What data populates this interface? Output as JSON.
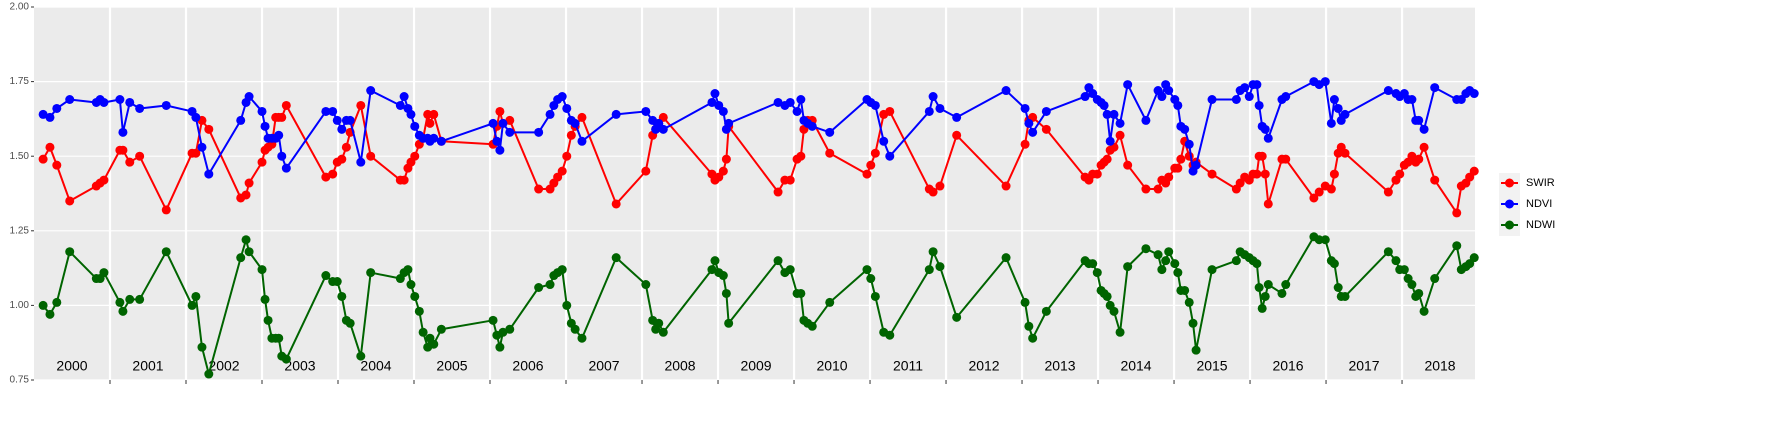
{
  "chart_data": {
    "type": "line",
    "x": [
      2000.12,
      2000.21,
      2000.3,
      2000.47,
      2000.82,
      2000.87,
      2000.92,
      2001.13,
      2001.17,
      2001.26,
      2001.39,
      2001.74,
      2002.08,
      2002.13,
      2002.21,
      2002.3,
      2002.72,
      2002.79,
      2002.83,
      2003.0,
      2003.04,
      2003.08,
      2003.13,
      2003.18,
      2003.22,
      2003.26,
      2003.32,
      2003.84,
      2003.93,
      2003.99,
      2004.05,
      2004.11,
      2004.16,
      2004.3,
      2004.43,
      2004.82,
      2004.87,
      2004.92,
      2004.96,
      2005.01,
      2005.07,
      2005.12,
      2005.18,
      2005.21,
      2005.26,
      2005.36,
      2006.04,
      2006.09,
      2006.13,
      2006.17,
      2006.26,
      2006.64,
      2006.79,
      2006.84,
      2006.89,
      2006.95,
      2007.01,
      2007.07,
      2007.12,
      2007.21,
      2007.66,
      2008.05,
      2008.14,
      2008.18,
      2008.22,
      2008.28,
      2008.92,
      2008.96,
      2009.01,
      2009.07,
      2009.11,
      2009.14,
      2009.79,
      2009.88,
      2009.95,
      2010.04,
      2010.09,
      2010.13,
      2010.18,
      2010.24,
      2010.47,
      2010.96,
      2011.01,
      2011.07,
      2011.18,
      2011.26,
      2011.78,
      2011.83,
      2011.92,
      2012.14,
      2012.79,
      2013.04,
      2013.09,
      2013.14,
      2013.32,
      2013.83,
      2013.88,
      2013.93,
      2013.99,
      2014.04,
      2014.08,
      2014.12,
      2014.16,
      2014.21,
      2014.29,
      2014.39,
      2014.63,
      2014.79,
      2014.84,
      2014.89,
      2014.93,
      2015.01,
      2015.05,
      2015.09,
      2015.14,
      2015.2,
      2015.25,
      2015.29,
      2015.5,
      2015.82,
      2015.87,
      2015.93,
      2015.99,
      2016.04,
      2016.09,
      2016.12,
      2016.16,
      2016.2,
      2016.24,
      2016.42,
      2016.47,
      2016.84,
      2016.91,
      2016.99,
      2017.07,
      2017.11,
      2017.16,
      2017.2,
      2017.25,
      2017.82,
      2017.92,
      2017.97,
      2018.03,
      2018.08,
      2018.13,
      2018.18,
      2018.22,
      2018.29,
      2018.43,
      2018.72,
      2018.78,
      2018.84,
      2018.89,
      2018.95
    ],
    "series": [
      {
        "name": "SWIR",
        "color": "#ff0000",
        "values": [
          1.49,
          1.53,
          1.47,
          1.35,
          1.4,
          1.41,
          1.42,
          1.52,
          1.52,
          1.48,
          1.5,
          1.32,
          1.51,
          1.51,
          1.62,
          1.59,
          1.36,
          1.37,
          1.41,
          1.48,
          1.52,
          1.53,
          1.54,
          1.63,
          1.63,
          1.63,
          1.67,
          1.43,
          1.44,
          1.48,
          1.49,
          1.53,
          1.58,
          1.67,
          1.5,
          1.42,
          1.42,
          1.46,
          1.48,
          1.5,
          1.54,
          1.56,
          1.64,
          1.61,
          1.64,
          1.55,
          1.54,
          1.6,
          1.65,
          1.61,
          1.62,
          1.39,
          1.39,
          1.41,
          1.43,
          1.45,
          1.5,
          1.57,
          1.6,
          1.63,
          1.34,
          1.45,
          1.57,
          1.59,
          1.61,
          1.63,
          1.44,
          1.42,
          1.43,
          1.45,
          1.49,
          1.6,
          1.38,
          1.42,
          1.42,
          1.49,
          1.5,
          1.59,
          1.62,
          1.62,
          1.51,
          1.44,
          1.47,
          1.51,
          1.64,
          1.65,
          1.39,
          1.38,
          1.4,
          1.57,
          1.4,
          1.54,
          1.62,
          1.63,
          1.59,
          1.43,
          1.42,
          1.44,
          1.44,
          1.47,
          1.48,
          1.49,
          1.52,
          1.53,
          1.57,
          1.47,
          1.39,
          1.39,
          1.42,
          1.41,
          1.43,
          1.46,
          1.46,
          1.49,
          1.55,
          1.5,
          1.47,
          1.48,
          1.44,
          1.39,
          1.41,
          1.43,
          1.42,
          1.44,
          1.44,
          1.5,
          1.5,
          1.44,
          1.34,
          1.49,
          1.49,
          1.36,
          1.38,
          1.4,
          1.39,
          1.44,
          1.51,
          1.53,
          1.51,
          1.38,
          1.42,
          1.44,
          1.47,
          1.48,
          1.5,
          1.48,
          1.49,
          1.53,
          1.42,
          1.31,
          1.4,
          1.41,
          1.43,
          1.45
        ]
      },
      {
        "name": "NDVI",
        "color": "#0000ff",
        "values": [
          1.64,
          1.63,
          1.66,
          1.69,
          1.68,
          1.69,
          1.68,
          1.69,
          1.58,
          1.68,
          1.66,
          1.67,
          1.65,
          1.63,
          1.53,
          1.44,
          1.62,
          1.68,
          1.7,
          1.65,
          1.6,
          1.56,
          1.56,
          1.56,
          1.57,
          1.5,
          1.46,
          1.65,
          1.65,
          1.62,
          1.59,
          1.62,
          1.62,
          1.48,
          1.72,
          1.67,
          1.7,
          1.66,
          1.64,
          1.6,
          1.57,
          1.56,
          1.56,
          1.55,
          1.56,
          1.55,
          1.61,
          1.55,
          1.52,
          1.61,
          1.58,
          1.58,
          1.64,
          1.67,
          1.69,
          1.7,
          1.66,
          1.62,
          1.61,
          1.55,
          1.64,
          1.65,
          1.62,
          1.59,
          1.61,
          1.59,
          1.68,
          1.71,
          1.67,
          1.65,
          1.59,
          1.61,
          1.68,
          1.67,
          1.68,
          1.65,
          1.69,
          1.62,
          1.61,
          1.6,
          1.58,
          1.69,
          1.68,
          1.67,
          1.55,
          1.5,
          1.65,
          1.7,
          1.66,
          1.63,
          1.72,
          1.66,
          1.61,
          1.58,
          1.65,
          1.7,
          1.73,
          1.71,
          1.69,
          1.68,
          1.67,
          1.64,
          1.55,
          1.64,
          1.61,
          1.74,
          1.62,
          1.72,
          1.7,
          1.74,
          1.72,
          1.69,
          1.67,
          1.6,
          1.59,
          1.54,
          1.45,
          1.47,
          1.69,
          1.69,
          1.72,
          1.73,
          1.7,
          1.74,
          1.74,
          1.67,
          1.6,
          1.59,
          1.56,
          1.69,
          1.7,
          1.75,
          1.74,
          1.75,
          1.61,
          1.69,
          1.66,
          1.62,
          1.64,
          1.72,
          1.71,
          1.7,
          1.71,
          1.69,
          1.69,
          1.62,
          1.62,
          1.59,
          1.73,
          1.69,
          1.69,
          1.71,
          1.72,
          1.71
        ]
      },
      {
        "name": "NDWI",
        "color": "#006400",
        "values": [
          1.0,
          0.97,
          1.01,
          1.18,
          1.09,
          1.09,
          1.11,
          1.01,
          0.98,
          1.02,
          1.02,
          1.18,
          1.0,
          1.03,
          0.86,
          0.77,
          1.16,
          1.22,
          1.18,
          1.12,
          1.02,
          0.95,
          0.89,
          0.89,
          0.89,
          0.83,
          0.82,
          1.1,
          1.08,
          1.08,
          1.03,
          0.95,
          0.94,
          0.83,
          1.11,
          1.09,
          1.11,
          1.12,
          1.07,
          1.03,
          0.98,
          0.91,
          0.86,
          0.89,
          0.87,
          0.92,
          0.95,
          0.9,
          0.86,
          0.91,
          0.92,
          1.06,
          1.07,
          1.1,
          1.11,
          1.12,
          1.0,
          0.94,
          0.92,
          0.89,
          1.16,
          1.07,
          0.95,
          0.92,
          0.94,
          0.91,
          1.12,
          1.15,
          1.11,
          1.1,
          1.04,
          0.94,
          1.15,
          1.11,
          1.12,
          1.04,
          1.04,
          0.95,
          0.94,
          0.93,
          1.01,
          1.12,
          1.09,
          1.03,
          0.91,
          0.9,
          1.12,
          1.18,
          1.13,
          0.96,
          1.16,
          1.01,
          0.93,
          0.89,
          0.98,
          1.15,
          1.14,
          1.14,
          1.11,
          1.05,
          1.04,
          1.03,
          1.0,
          0.98,
          0.91,
          1.13,
          1.19,
          1.17,
          1.12,
          1.15,
          1.18,
          1.14,
          1.11,
          1.05,
          1.05,
          1.01,
          0.94,
          0.85,
          1.12,
          1.15,
          1.18,
          1.17,
          1.16,
          1.15,
          1.14,
          1.06,
          0.99,
          1.03,
          1.07,
          1.04,
          1.07,
          1.23,
          1.22,
          1.22,
          1.15,
          1.14,
          1.06,
          1.03,
          1.03,
          1.18,
          1.15,
          1.12,
          1.12,
          1.09,
          1.07,
          1.03,
          1.04,
          0.98,
          1.09,
          1.2,
          1.12,
          1.13,
          1.14,
          1.16
        ]
      }
    ],
    "xlim": [
      2000,
      2018.96
    ],
    "xticks": [
      2001,
      2002,
      2003,
      2004,
      2005,
      2006,
      2007,
      2008,
      2009,
      2010,
      2011,
      2012,
      2013,
      2014,
      2015,
      2016,
      2017,
      2018
    ],
    "ylim": [
      0.75,
      2.0
    ],
    "yticks": [
      0.75,
      {
        "value": 1.0,
        "label": "1.00"
      },
      1.25,
      {
        "value": 1.5,
        "label": "1.50"
      },
      1.75,
      {
        "value": 2.0,
        "label": "2.00"
      }
    ],
    "year_labels": [
      "2000",
      "2001",
      "2002",
      "2003",
      "2004",
      "2005",
      "2006",
      "2007",
      "2008",
      "2009",
      "2010",
      "2011",
      "2012",
      "2013",
      "2014",
      "2015",
      "2016",
      "2017",
      "2018"
    ],
    "grid": true,
    "legend": "right"
  }
}
